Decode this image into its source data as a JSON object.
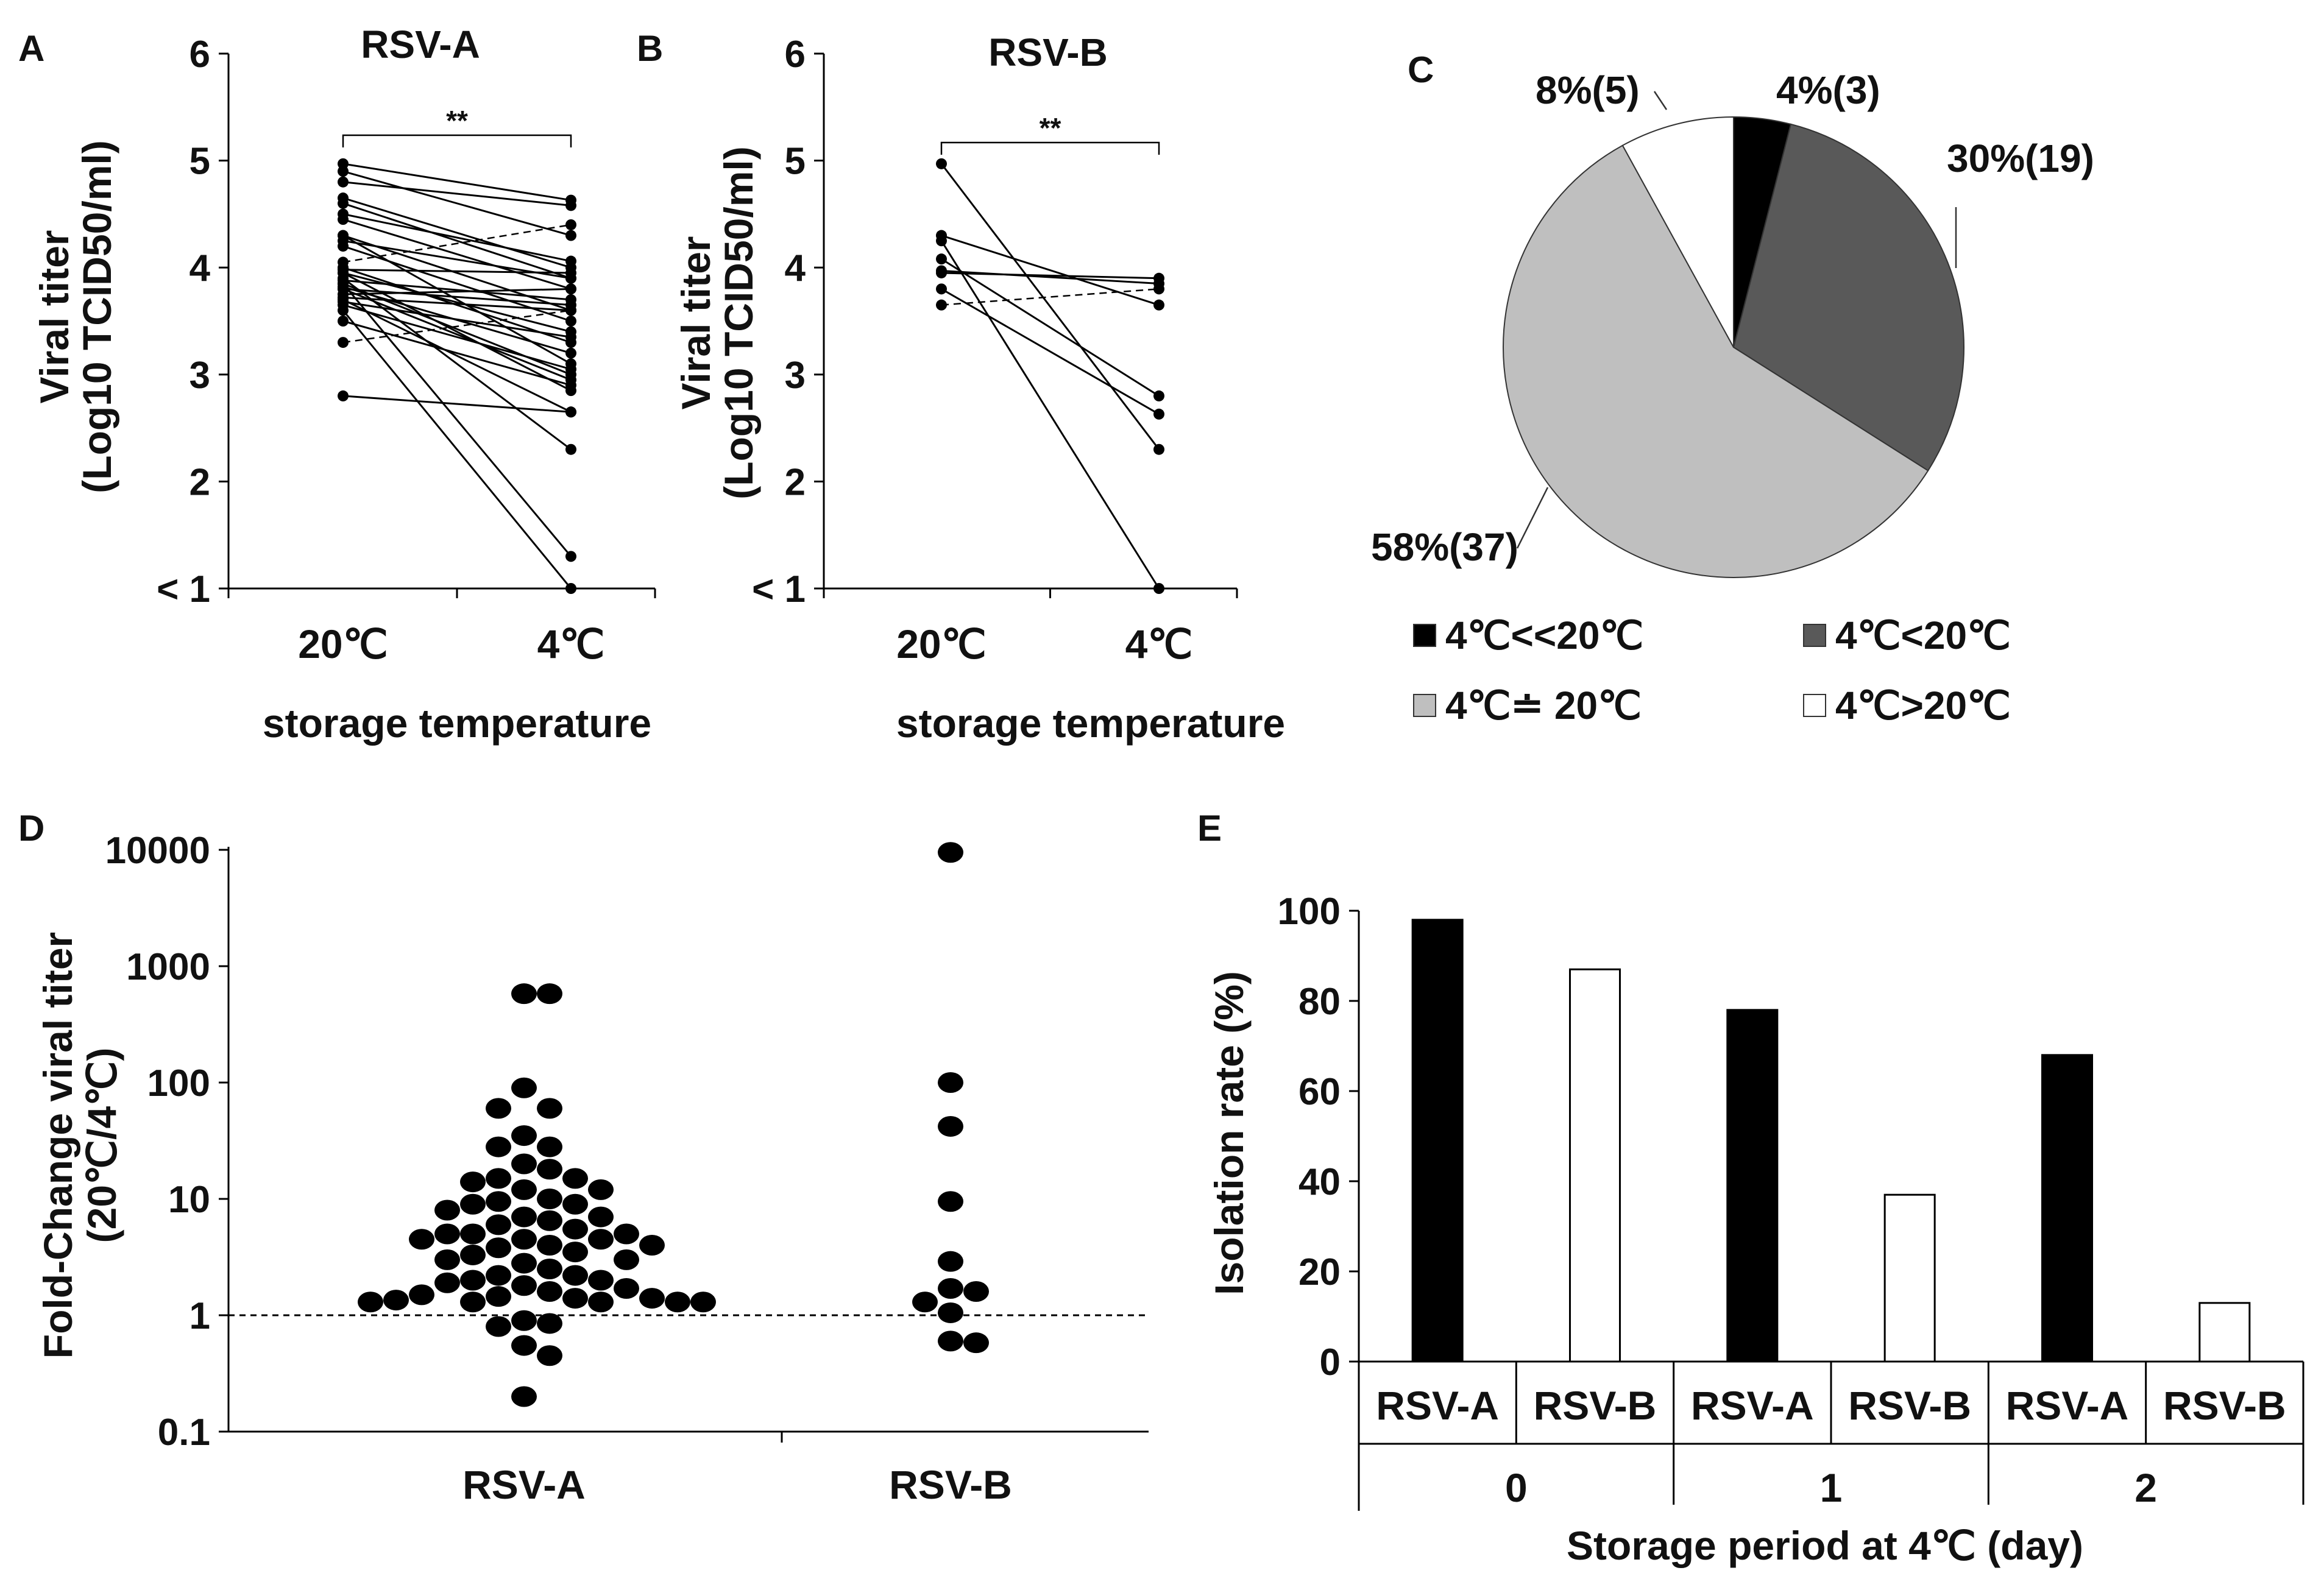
{
  "chart_data": [
    {
      "panel": "A",
      "type": "paired-line",
      "title": "RSV-A",
      "ylabel_line1": "Viral titer",
      "ylabel_line2": "(Log10 TCID50/ml)",
      "xlabel": "storage temperature",
      "categories": [
        "20℃",
        "4℃"
      ],
      "yticks": [
        "< 1",
        "2",
        "3",
        "4",
        "5",
        "6"
      ],
      "ylim": [
        1,
        6
      ],
      "significance": "**",
      "pairs": [
        [
          4.97,
          4.63
        ],
        [
          4.9,
          4.3
        ],
        [
          4.8,
          4.58
        ],
        [
          4.65,
          4.0
        ],
        [
          4.6,
          3.9
        ],
        [
          4.5,
          4.06
        ],
        [
          4.45,
          3.8
        ],
        [
          4.3,
          3.6
        ],
        [
          4.3,
          3.1
        ],
        [
          4.25,
          3.9
        ],
        [
          4.2,
          3.5
        ],
        [
          4.05,
          4.4
        ],
        [
          4.0,
          3.3
        ],
        [
          3.98,
          3.95
        ],
        [
          3.95,
          3.4
        ],
        [
          3.95,
          2.85
        ],
        [
          3.9,
          2.3
        ],
        [
          3.88,
          3.7
        ],
        [
          3.85,
          3.0
        ],
        [
          3.85,
          1.3
        ],
        [
          3.82,
          3.2
        ],
        [
          3.8,
          3.65
        ],
        [
          3.8,
          2.95
        ],
        [
          3.75,
          3.8
        ],
        [
          3.72,
          3.6
        ],
        [
          3.7,
          2.65
        ],
        [
          3.68,
          3.35
        ],
        [
          3.65,
          3.05
        ],
        [
          3.6,
          1.0
        ],
        [
          3.5,
          2.9
        ],
        [
          3.3,
          3.6
        ],
        [
          2.8,
          2.65
        ]
      ],
      "dashed_pairs": [
        [
          4.05,
          4.4
        ],
        [
          3.3,
          3.6
        ]
      ]
    },
    {
      "panel": "B",
      "type": "paired-line",
      "title": "RSV-B",
      "ylabel_line1": "Viral titer",
      "ylabel_line2": "(Log10 TCID50/ml)",
      "xlabel": "storage temperature",
      "categories": [
        "20℃",
        "4℃"
      ],
      "yticks": [
        "< 1",
        "2",
        "3",
        "4",
        "5",
        "6"
      ],
      "ylim": [
        1,
        6
      ],
      "significance": "**",
      "pairs": [
        [
          4.97,
          2.3
        ],
        [
          4.3,
          3.65
        ],
        [
          4.25,
          1.0
        ],
        [
          4.08,
          2.8
        ],
        [
          3.97,
          3.85
        ],
        [
          3.95,
          3.9
        ],
        [
          3.8,
          2.63
        ],
        [
          3.65,
          3.8
        ]
      ],
      "dashed_pairs": [
        [
          3.65,
          3.8
        ]
      ]
    },
    {
      "panel": "C",
      "type": "pie",
      "slices": [
        {
          "label": "4%(3)",
          "percent": 4,
          "count": 3,
          "legend": "4℃<<20℃",
          "color": "#000000"
        },
        {
          "label": "30%(19)",
          "percent": 30,
          "count": 19,
          "legend": "4℃<20℃",
          "color": "#595959"
        },
        {
          "label": "58%(37)",
          "percent": 58,
          "count": 37,
          "legend": "4℃≐ 20℃",
          "color": "#bfbfbf"
        },
        {
          "label": "8%(5)",
          "percent": 8,
          "count": 5,
          "legend": "4℃>20℃",
          "color": "#ffffff"
        }
      ]
    },
    {
      "panel": "D",
      "type": "scatter",
      "yscale": "log",
      "ylabel_line1": "Fold-Change viral titer",
      "ylabel_line2": "(20℃/4℃)",
      "categories": [
        "RSV-A",
        "RSV-B"
      ],
      "yticks": [
        "0.1",
        "1",
        "10",
        "100",
        "1000",
        "10000"
      ],
      "ylim": [
        0.1,
        10000
      ],
      "reference_line": 1,
      "series": [
        {
          "name": "RSV-A",
          "values": [
            580,
            580,
            90,
            60,
            60,
            35,
            28,
            28,
            20,
            18,
            15,
            15,
            14,
            12,
            12,
            10,
            9.5,
            9,
            9,
            8,
            7,
            7,
            6.5,
            6,
            5.5,
            5,
            5,
            5,
            4.5,
            4.5,
            4.5,
            4,
            4,
            3.8,
            3.5,
            3.3,
            3,
            3,
            2.8,
            2.5,
            2.2,
            2.2,
            2,
            2,
            1.9,
            1.8,
            1.7,
            1.6,
            1.5,
            1.45,
            1.4,
            1.4,
            1.35,
            1.3,
            1.3,
            1.3,
            1.3,
            1.3,
            0.9,
            0.85,
            0.8,
            0.55,
            0.45,
            0.2
          ]
        },
        {
          "name": "RSV-B",
          "values": [
            9500,
            100,
            42,
            9.5,
            2.9,
            1.7,
            1.6,
            1.3,
            1.05,
            0.6,
            0.58
          ]
        }
      ]
    },
    {
      "panel": "E",
      "type": "bar",
      "ylabel": "Isolation rate (%)",
      "xlabel": "Storage period at 4℃ (day)",
      "groups": [
        "0",
        "1",
        "2"
      ],
      "ylim": [
        0,
        100
      ],
      "yticks": [
        "0",
        "20",
        "40",
        "60",
        "80",
        "100"
      ],
      "series": [
        {
          "name": "RSV-A",
          "color": "#000000",
          "values": [
            98,
            78,
            68
          ]
        },
        {
          "name": "RSV-B",
          "color": "#ffffff",
          "values": [
            87,
            37,
            13
          ]
        }
      ]
    }
  ]
}
